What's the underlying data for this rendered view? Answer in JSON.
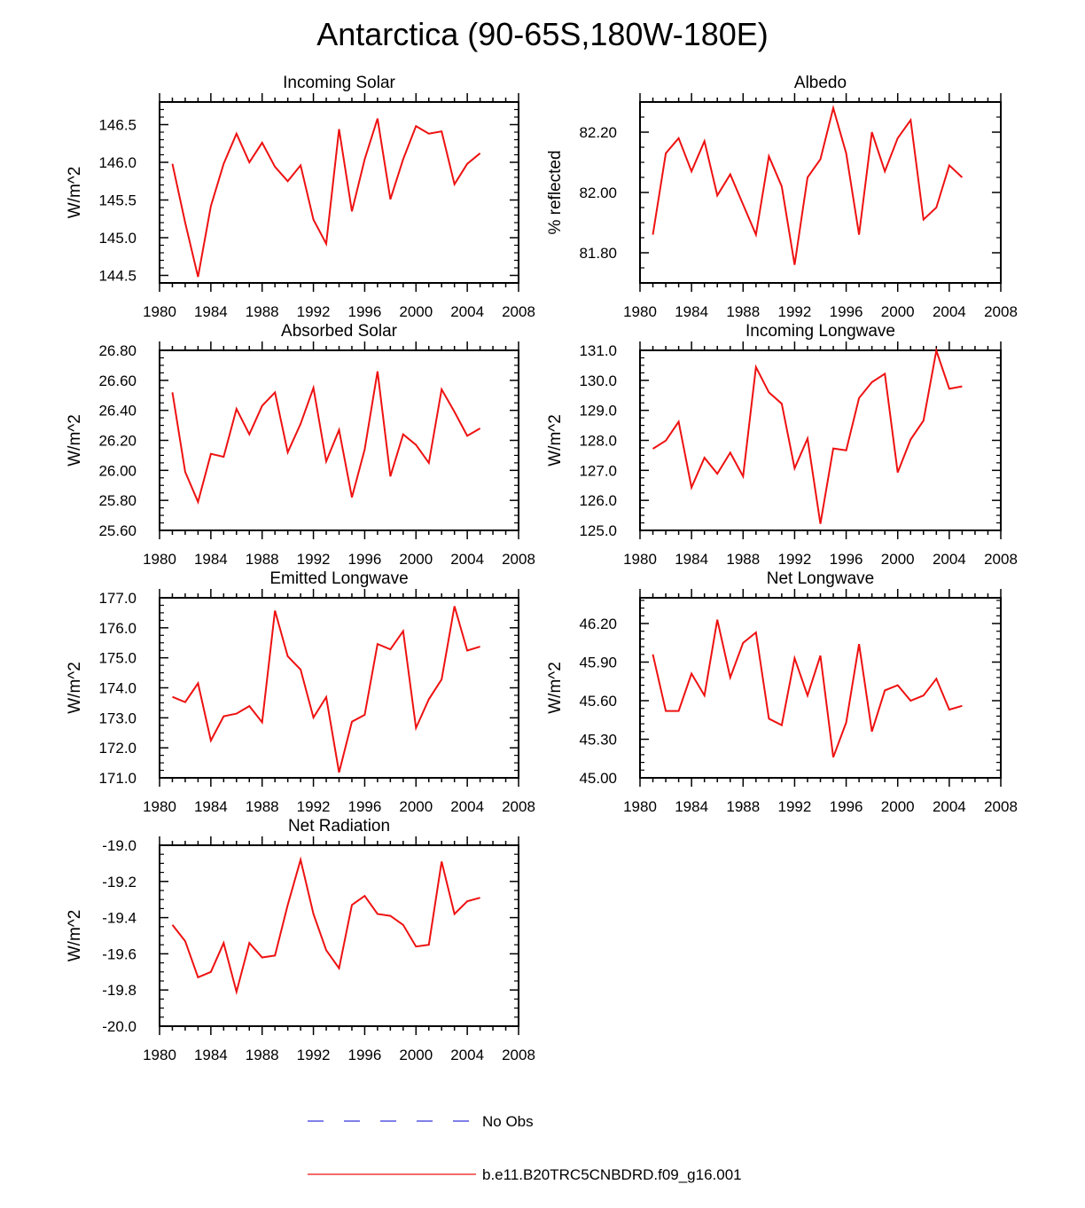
{
  "title": "Antarctica (90-65S,180W-180E)",
  "years": [
    1981,
    1982,
    1983,
    1984,
    1985,
    1986,
    1987,
    1988,
    1989,
    1990,
    1991,
    1992,
    1993,
    1994,
    1995,
    1996,
    1997,
    1998,
    1999,
    2000,
    2001,
    2002,
    2003,
    2004,
    2005
  ],
  "series_color": "#ee1111",
  "obs_color": "#3333dd",
  "legend": {
    "obs_label": "No Obs",
    "model_label": "b.e11.B20TRC5CNBDRD.f09_g16.001"
  },
  "chart_data": [
    {
      "type": "line",
      "title": "Incoming Solar",
      "ylabel": "W/m^2",
      "xlim": [
        1980,
        2008
      ],
      "ylim": [
        144.4,
        146.8
      ],
      "xticks": [
        "1980",
        "1984",
        "1988",
        "1992",
        "1996",
        "2000",
        "2004",
        "2008"
      ],
      "yticks": [
        {
          "v": 144.5,
          "l": "144.5"
        },
        {
          "v": 145.0,
          "l": "145.0"
        },
        {
          "v": 145.5,
          "l": "145.5"
        },
        {
          "v": 146.0,
          "l": "146.0"
        },
        {
          "v": 146.5,
          "l": "146.5"
        }
      ],
      "yminor": [
        144.4,
        144.6,
        144.7,
        144.8,
        144.9,
        145.1,
        145.2,
        145.3,
        145.4,
        145.6,
        145.7,
        145.8,
        145.9,
        146.1,
        146.2,
        146.3,
        146.4,
        146.6,
        146.7,
        146.8
      ],
      "values": [
        145.98,
        145.2,
        144.48,
        145.42,
        145.98,
        146.38,
        146.0,
        146.26,
        145.94,
        145.75,
        145.96,
        145.24,
        144.92,
        146.44,
        145.35,
        146.04,
        146.58,
        145.51,
        146.04,
        146.48,
        146.38,
        146.41,
        145.71,
        145.98,
        146.12
      ]
    },
    {
      "type": "line",
      "title": "Albedo",
      "ylabel": "% reflected",
      "xlim": [
        1980,
        2008
      ],
      "ylim": [
        81.7,
        82.3
      ],
      "xticks": [
        "1980",
        "1984",
        "1988",
        "1992",
        "1996",
        "2000",
        "2004",
        "2008"
      ],
      "yticks": [
        {
          "v": 81.8,
          "l": "81.80"
        },
        {
          "v": 82.0,
          "l": "82.00"
        },
        {
          "v": 82.2,
          "l": "82.20"
        }
      ],
      "yminor": [
        81.7,
        81.75,
        81.85,
        81.9,
        81.95,
        82.05,
        82.1,
        82.15,
        82.25,
        82.3
      ],
      "values": [
        81.86,
        82.13,
        82.18,
        82.07,
        82.17,
        81.99,
        82.06,
        81.96,
        81.86,
        82.12,
        82.02,
        81.76,
        82.05,
        82.11,
        82.28,
        82.13,
        81.86,
        82.2,
        82.07,
        82.18,
        82.24,
        81.91,
        81.95,
        82.09,
        82.05
      ]
    },
    {
      "type": "line",
      "title": "Absorbed Solar",
      "ylabel": "W/m^2",
      "xlim": [
        1980,
        2008
      ],
      "ylim": [
        25.6,
        26.8
      ],
      "xticks": [
        "1980",
        "1984",
        "1988",
        "1992",
        "1996",
        "2000",
        "2004",
        "2008"
      ],
      "yticks": [
        {
          "v": 25.6,
          "l": "25.60"
        },
        {
          "v": 25.8,
          "l": "25.80"
        },
        {
          "v": 26.0,
          "l": "26.00"
        },
        {
          "v": 26.2,
          "l": "26.20"
        },
        {
          "v": 26.4,
          "l": "26.40"
        },
        {
          "v": 26.6,
          "l": "26.60"
        },
        {
          "v": 26.8,
          "l": "26.80"
        }
      ],
      "yminor": [
        25.65,
        25.7,
        25.75,
        25.85,
        25.9,
        25.95,
        26.05,
        26.1,
        26.15,
        26.25,
        26.3,
        26.35,
        26.45,
        26.5,
        26.55,
        26.65,
        26.7,
        26.75
      ],
      "values": [
        26.52,
        25.99,
        25.79,
        26.11,
        26.09,
        26.41,
        26.24,
        26.43,
        26.52,
        26.12,
        26.31,
        26.55,
        26.06,
        26.27,
        25.82,
        26.14,
        26.66,
        25.96,
        26.24,
        26.17,
        26.05,
        26.54,
        26.39,
        26.23,
        26.28
      ]
    },
    {
      "type": "line",
      "title": "Incoming Longwave",
      "ylabel": "W/m^2",
      "xlim": [
        1980,
        2008
      ],
      "ylim": [
        125.0,
        131.0
      ],
      "xticks": [
        "1980",
        "1984",
        "1988",
        "1992",
        "1996",
        "2000",
        "2004",
        "2008"
      ],
      "yticks": [
        {
          "v": 125.0,
          "l": "125.0"
        },
        {
          "v": 126.0,
          "l": "126.0"
        },
        {
          "v": 127.0,
          "l": "127.0"
        },
        {
          "v": 128.0,
          "l": "128.0"
        },
        {
          "v": 129.0,
          "l": "129.0"
        },
        {
          "v": 130.0,
          "l": "130.0"
        },
        {
          "v": 131.0,
          "l": "131.0"
        }
      ],
      "yminor": [
        125.25,
        125.5,
        125.75,
        126.25,
        126.5,
        126.75,
        127.25,
        127.5,
        127.75,
        128.25,
        128.5,
        128.75,
        129.25,
        129.5,
        129.75,
        130.25,
        130.5,
        130.75
      ],
      "values": [
        127.72,
        127.99,
        128.62,
        126.43,
        127.42,
        126.89,
        127.59,
        126.8,
        130.44,
        129.6,
        129.22,
        127.07,
        128.06,
        125.22,
        127.73,
        127.67,
        129.41,
        129.94,
        130.22,
        126.93,
        128.03,
        128.66,
        130.99,
        129.72,
        129.8
      ]
    },
    {
      "type": "line",
      "title": "Emitted Longwave",
      "ylabel": "W/m^2",
      "xlim": [
        1980,
        2008
      ],
      "ylim": [
        171.0,
        177.0
      ],
      "xticks": [
        "1980",
        "1984",
        "1988",
        "1992",
        "1996",
        "2000",
        "2004",
        "2008"
      ],
      "yticks": [
        {
          "v": 171.0,
          "l": "171.0"
        },
        {
          "v": 172.0,
          "l": "172.0"
        },
        {
          "v": 173.0,
          "l": "173.0"
        },
        {
          "v": 174.0,
          "l": "174.0"
        },
        {
          "v": 175.0,
          "l": "175.0"
        },
        {
          "v": 176.0,
          "l": "176.0"
        },
        {
          "v": 177.0,
          "l": "177.0"
        }
      ],
      "yminor": [
        171.25,
        171.5,
        171.75,
        172.25,
        172.5,
        172.75,
        173.25,
        173.5,
        173.75,
        174.25,
        174.5,
        174.75,
        175.25,
        175.5,
        175.75,
        176.25,
        176.5,
        176.75
      ],
      "values": [
        173.7,
        173.52,
        174.15,
        172.24,
        173.05,
        173.14,
        173.39,
        172.85,
        176.57,
        175.05,
        174.61,
        173.01,
        173.69,
        171.18,
        172.87,
        173.1,
        175.46,
        175.28,
        175.89,
        172.66,
        173.62,
        174.28,
        176.72,
        175.24,
        175.37
      ]
    },
    {
      "type": "line",
      "title": "Net Longwave",
      "ylabel": "W/m^2",
      "xlim": [
        1980,
        2008
      ],
      "ylim": [
        45.0,
        46.4
      ],
      "xticks": [
        "1980",
        "1984",
        "1988",
        "1992",
        "1996",
        "2000",
        "2004",
        "2008"
      ],
      "yticks": [
        {
          "v": 45.0,
          "l": "45.00"
        },
        {
          "v": 45.3,
          "l": "45.30"
        },
        {
          "v": 45.6,
          "l": "45.60"
        },
        {
          "v": 45.9,
          "l": "45.90"
        },
        {
          "v": 46.2,
          "l": "46.20"
        }
      ],
      "yminor": [
        45.06,
        45.12,
        45.18,
        45.24,
        45.36,
        45.42,
        45.48,
        45.54,
        45.66,
        45.72,
        45.78,
        45.84,
        45.96,
        46.02,
        46.08,
        46.14,
        46.26,
        46.32,
        46.38
      ],
      "values": [
        45.96,
        45.52,
        45.52,
        45.81,
        45.64,
        46.23,
        45.78,
        46.05,
        46.13,
        45.46,
        45.41,
        45.93,
        45.64,
        45.95,
        45.16,
        45.43,
        46.04,
        45.36,
        45.68,
        45.72,
        45.6,
        45.64,
        45.77,
        45.53,
        45.56
      ]
    },
    {
      "type": "line",
      "title": "Net Radiation",
      "ylabel": "W/m^2",
      "xlim": [
        1980,
        2008
      ],
      "ylim": [
        -20.0,
        -19.0
      ],
      "xticks": [
        "1980",
        "1984",
        "1988",
        "1992",
        "1996",
        "2000",
        "2004",
        "2008"
      ],
      "yticks": [
        {
          "v": -20.0,
          "l": "-20.0"
        },
        {
          "v": -19.8,
          "l": "-19.8"
        },
        {
          "v": -19.6,
          "l": "-19.6"
        },
        {
          "v": -19.4,
          "l": "-19.4"
        },
        {
          "v": -19.2,
          "l": "-19.2"
        },
        {
          "v": -19.0,
          "l": "-19.0"
        }
      ],
      "yminor": [
        -19.95,
        -19.9,
        -19.85,
        -19.75,
        -19.7,
        -19.65,
        -19.55,
        -19.5,
        -19.45,
        -19.35,
        -19.3,
        -19.25,
        -19.15,
        -19.1,
        -19.05
      ],
      "values": [
        -19.44,
        -19.53,
        -19.73,
        -19.7,
        -19.54,
        -19.81,
        -19.54,
        -19.62,
        -19.61,
        -19.33,
        -19.08,
        -19.38,
        -19.58,
        -19.68,
        -19.33,
        -19.28,
        -19.38,
        -19.39,
        -19.44,
        -19.56,
        -19.55,
        -19.09,
        -19.38,
        -19.31,
        -19.29
      ]
    }
  ]
}
